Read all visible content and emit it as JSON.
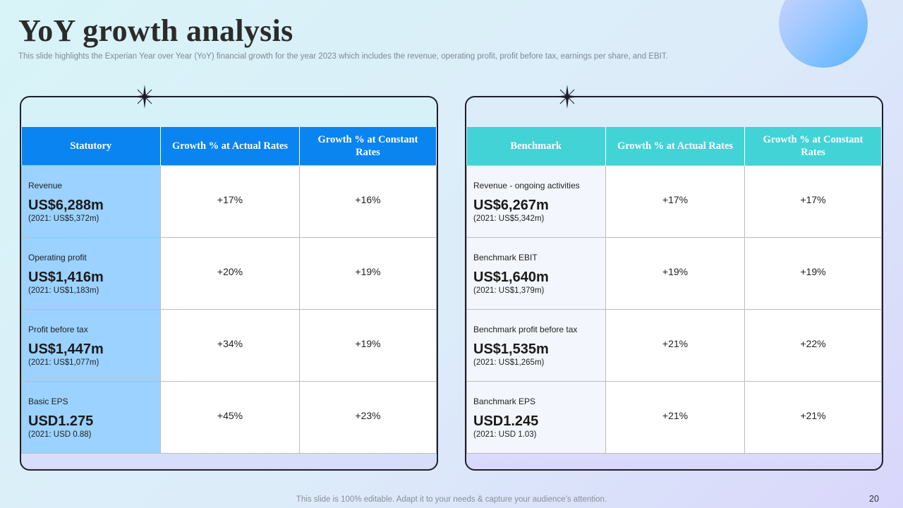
{
  "title": "YoY growth analysis",
  "subtitle": "This slide highlights the Experian Year over Year (YoY) financial growth for the year 2023 which includes the revenue, operating profit, profit before tax, earnings per share, and EBIT.",
  "statutory": {
    "headers": [
      "Statutory",
      "Growth % at Actual Rates",
      "Growth % at Constant Rates"
    ],
    "rows": [
      {
        "label": "Revenue",
        "value": "US$6,288m",
        "prev": "(2021: US$5,372m)",
        "actual": "+17%",
        "constant": "+16%"
      },
      {
        "label": "Operating profit",
        "value": "US$1,416m",
        "prev": "(2021: US$1,183m)",
        "actual": "+20%",
        "constant": "+19%"
      },
      {
        "label": "Profit before tax",
        "value": "US$1,447m",
        "prev": "(2021: US$1,077m)",
        "actual": "+34%",
        "constant": "+19%"
      },
      {
        "label": "Basic EPS",
        "value": "USD1.275",
        "prev": "(2021: USD 0.88)",
        "actual": "+45%",
        "constant": "+23%"
      }
    ]
  },
  "benchmark": {
    "headers": [
      "Benchmark",
      "Growth % at Actual Rates",
      "Growth % at Constant Rates"
    ],
    "rows": [
      {
        "label": "Revenue - ongoing activities",
        "value": "US$6,267m",
        "prev": "(2021: US$5,342m)",
        "actual": "+17%",
        "constant": "+17%"
      },
      {
        "label": "Benchmark EBIT",
        "value": "US$1,640m",
        "prev": "(2021: US$1,379m)",
        "actual": "+19%",
        "constant": "+19%"
      },
      {
        "label": "Benchmark profit before tax",
        "value": "US$1,535m",
        "prev": "(2021: US$1,265m)",
        "actual": "+21%",
        "constant": "+22%"
      },
      {
        "label": "Banchmark EPS",
        "value": "USD1.245",
        "prev": "(2021: USD 1.03)",
        "actual": "+21%",
        "constant": "+21%"
      }
    ]
  },
  "footer": "This slide is 100% editable. Adapt it to your needs & capture your audience’s attention.",
  "page_number": "20",
  "colors": {
    "statutory_header": "#0a84f0",
    "statutory_label_bg": "#9bd2ff",
    "benchmark_header": "#42d3d6",
    "benchmark_label_bg": "#f3f6fd"
  },
  "icons": [
    "sparkle-icon",
    "decorative-circle"
  ]
}
